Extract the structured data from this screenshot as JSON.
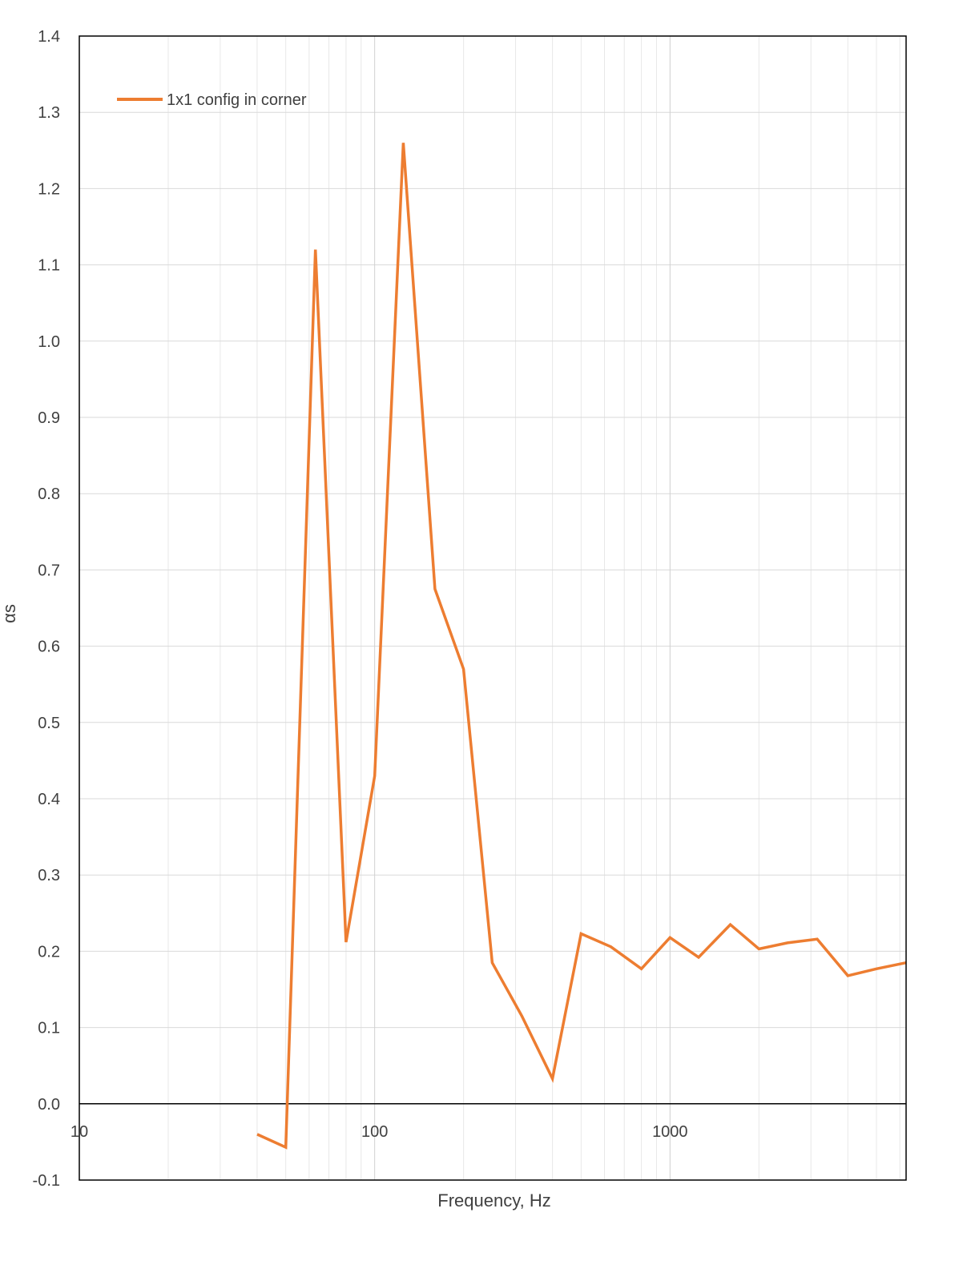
{
  "chart_data": {
    "type": "line",
    "title": "",
    "xlabel": "Frequency, Hz",
    "ylabel": "αs",
    "x_scale": "log",
    "xlim": [
      10,
      6300
    ],
    "ylim": [
      -0.1,
      1.4
    ],
    "x_ticks": [
      "10",
      "100",
      "1000"
    ],
    "y_ticks": [
      "-0.1",
      "0.0",
      "0.1",
      "0.2",
      "0.3",
      "0.4",
      "0.5",
      "0.6",
      "0.7",
      "0.8",
      "0.9",
      "1.0",
      "1.1",
      "1.2",
      "1.3",
      "1.4"
    ],
    "grid": true,
    "legend_position": "top-left",
    "series": [
      {
        "name": "1x1 config in corner",
        "color": "#ED7D31",
        "x": [
          40,
          50,
          63,
          80,
          100,
          125,
          160,
          200,
          250,
          315,
          400,
          500,
          630,
          800,
          1000,
          1250,
          1600,
          2000,
          2500,
          3150,
          4000,
          5000,
          6300
        ],
        "values": [
          -0.04,
          -0.057,
          1.12,
          0.212,
          0.43,
          1.26,
          0.675,
          0.57,
          0.185,
          0.115,
          0.033,
          0.223,
          0.206,
          0.177,
          0.218,
          0.192,
          0.235,
          0.203,
          0.211,
          0.216,
          0.168,
          0.177,
          0.185
        ]
      }
    ]
  }
}
